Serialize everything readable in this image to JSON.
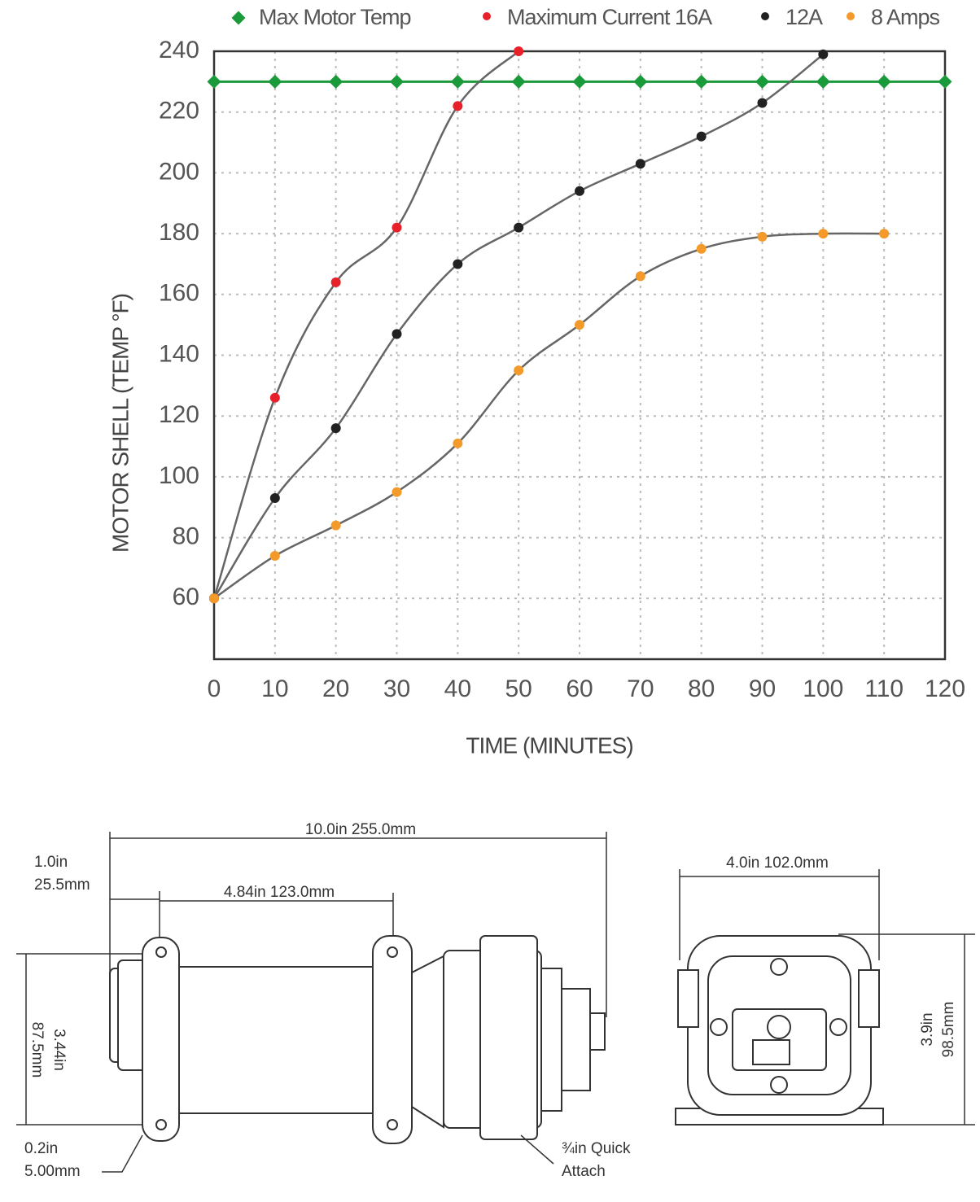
{
  "chart_data": {
    "type": "line",
    "x_label": "TIME (MINUTES)",
    "y_label": "MOTOR SHELL (TEMP °F)",
    "x": [
      0,
      10,
      20,
      30,
      40,
      50,
      60,
      70,
      80,
      90,
      100,
      110,
      120
    ],
    "xlim": [
      0,
      120
    ],
    "xticks": [
      0,
      10,
      20,
      30,
      40,
      50,
      60,
      70,
      80,
      90,
      100,
      110,
      120
    ],
    "ylim": [
      40,
      240
    ],
    "yticks": [
      60,
      80,
      100,
      120,
      140,
      160,
      180,
      200,
      220,
      240
    ],
    "grid": true,
    "curve_color": "#666666",
    "series": [
      {
        "name": "Max Motor Temp",
        "color": "#1a9a3a",
        "marker": "diamond",
        "smooth": false,
        "values": [
          230,
          230,
          230,
          230,
          230,
          230,
          230,
          230,
          230,
          230,
          230,
          230,
          230
        ]
      },
      {
        "name": "Maximum Current 16A",
        "color": "#e8202a",
        "marker": "circle",
        "smooth": true,
        "values": [
          60,
          126,
          164,
          182,
          222,
          240,
          null,
          null,
          null,
          null,
          null,
          null,
          null
        ]
      },
      {
        "name": "12A",
        "color": "#222222",
        "marker": "circle",
        "smooth": true,
        "values": [
          60,
          93,
          116,
          147,
          170,
          182,
          194,
          203,
          212,
          223,
          239,
          null,
          null
        ]
      },
      {
        "name": "8 Amps",
        "color": "#f39a2b",
        "marker": "circle",
        "smooth": true,
        "values": [
          60,
          74,
          84,
          95,
          111,
          135,
          150,
          166,
          175,
          179,
          180,
          180,
          null
        ]
      }
    ]
  },
  "drawing": {
    "overall": "10.0in  255.0mm",
    "offset_in": "1.0in",
    "offset_mm": "25.5mm",
    "spacing": "4.84in  123.0mm",
    "height_in": "3.44in",
    "height_mm": "87.5mm",
    "hole_in": "0.2in",
    "hole_mm": "5.00mm",
    "port_1": "¾in Quick",
    "port_2": "Attach",
    "width": "4.0in  102.0mm",
    "front_h_in": "3.9in",
    "front_h_mm": "98.5mm"
  }
}
